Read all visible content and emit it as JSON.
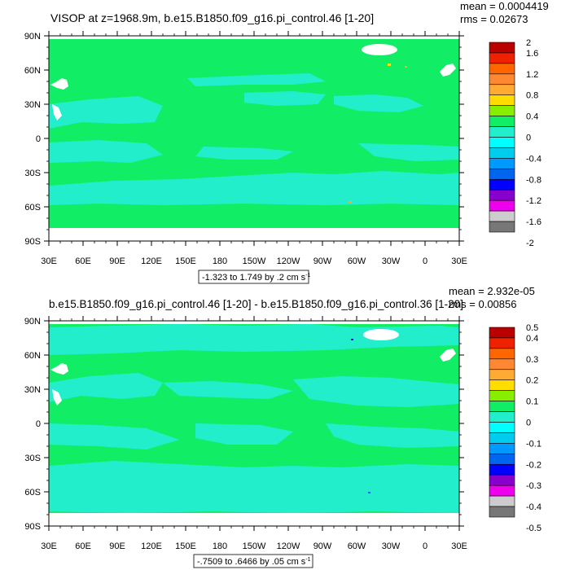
{
  "panels": [
    {
      "title": "VISOP at z=1968.9m, b.e15.B1850.f09_g16.pi_control.46 [1-20]",
      "stat_mean": "mean = 0.0004419",
      "stat_rms": "rms = 0.02673",
      "range_label": "-1.323 to 1.749 by .2 cm s",
      "range_units_exp": "-1",
      "colorbar_labels": [
        "2",
        "1.6",
        "1.2",
        "0.8",
        "0.4",
        "0",
        "-0.4",
        "-0.8",
        "-1.2",
        "-1.6",
        "-2"
      ]
    },
    {
      "title": "b.e15.B1850.f09_g16.pi_control.46 [1-20] - b.e15.B1850.f09_g16.pi_control.36 [1-20]",
      "stat_mean": "mean = 2.932e-05",
      "stat_rms": "rms = 0.00856",
      "range_label": "-.7509 to .6466 by .05 cm s",
      "range_units_exp": "-1",
      "colorbar_labels": [
        "0.5",
        "0.4",
        "0.3",
        "0.2",
        "0.1",
        "0",
        "-0.1",
        "-0.2",
        "-0.3",
        "-0.4",
        "-0.5"
      ]
    }
  ],
  "lat_labels": [
    "90N",
    "60N",
    "30N",
    "0",
    "30S",
    "60S",
    "90S"
  ],
  "lon_labels": [
    "30E",
    "60E",
    "90E",
    "120E",
    "150E",
    "180",
    "150W",
    "120W",
    "90W",
    "60W",
    "30W",
    "0",
    "30E"
  ],
  "colors": {
    "ocean_base": "#11ee66",
    "ocean_alt": "#22eecc",
    "land": "#ffffff",
    "colorbar": [
      "#bb0000",
      "#ee2200",
      "#ff6600",
      "#ff8833",
      "#ffaa33",
      "#ffdd00",
      "#88ee00",
      "#11ee66",
      "#22eecc",
      "#00ffff",
      "#00ccee",
      "#0099ff",
      "#0066ee",
      "#0000ff",
      "#8800cc",
      "#ee00ee",
      "#cccccc",
      "#777777"
    ]
  }
}
